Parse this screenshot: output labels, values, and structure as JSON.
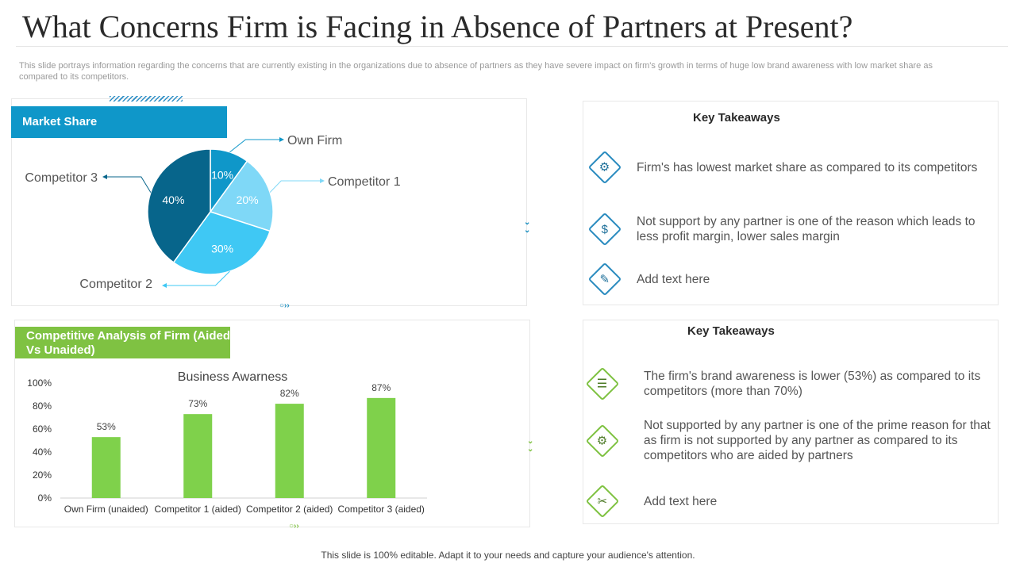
{
  "slide": {
    "title": "What Concerns Firm is Facing in Absence of Partners at Present?",
    "subtitle": "This slide portrays information regarding the concerns that are currently existing in the organizations due to absence of partners as they have severe impact on firm's growth in terms of huge low brand awareness with low market share as compared to its competitors.",
    "footer": "This slide is 100% editable. Adapt it to your needs and capture your audience's attention."
  },
  "market_share": {
    "banner": "Market Share"
  },
  "competitive_analysis": {
    "banner": "Competitive Analysis of Firm (Aided Vs Unaided)"
  },
  "takeaways_top": {
    "title": "Key Takeaways",
    "items": [
      {
        "icon": "gear-monitor-icon",
        "text": "Firm's has lowest market share as compared to its competitors"
      },
      {
        "icon": "money-hand-icon",
        "text": "Not support by any partner is one of the reason which leads to less profit margin, lower sales margin"
      },
      {
        "icon": "edit-document-icon",
        "text": "Add text here"
      }
    ]
  },
  "takeaways_bottom": {
    "title": "Key Takeaways",
    "items": [
      {
        "icon": "report-document-icon",
        "text": "The firm's brand awareness is lower (53%) as compared to its competitors (more than 70%)"
      },
      {
        "icon": "settings-document-icon",
        "text": "Not supported by any partner is one of the prime reason for that as firm is not supported by any partner as compared to its competitors who are aided by partners"
      },
      {
        "icon": "tools-icon",
        "text": "Add text here"
      }
    ]
  },
  "colors": {
    "pie": [
      "#0f97c9",
      "#7fd8f7",
      "#3fc8f4",
      "#07658b"
    ],
    "bar": "#7fd14b",
    "blue_banner": "#0f97c9",
    "green_banner": "#7fc242"
  },
  "chart_data": [
    {
      "type": "pie",
      "title": "Market Share",
      "categories": [
        "Own Firm",
        "Competitor 1",
        "Competitor 2",
        "Competitor 3"
      ],
      "values": [
        10,
        20,
        30,
        40
      ],
      "labels": [
        "10%",
        "20%",
        "30%",
        "40%"
      ]
    },
    {
      "type": "bar",
      "title": "Business Awarness",
      "categories": [
        "Own Firm (unaided)",
        "Competitor 1 (aided)",
        "Competitor 2 (aided)",
        "Competitor 3 (aided)"
      ],
      "values": [
        53,
        73,
        82,
        87
      ],
      "labels": [
        "53%",
        "73%",
        "82%",
        "87%"
      ],
      "yticks": [
        "0%",
        "20%",
        "40%",
        "60%",
        "80%",
        "100%"
      ],
      "ylim": [
        0,
        100
      ],
      "grid": false,
      "legend": "none"
    }
  ]
}
